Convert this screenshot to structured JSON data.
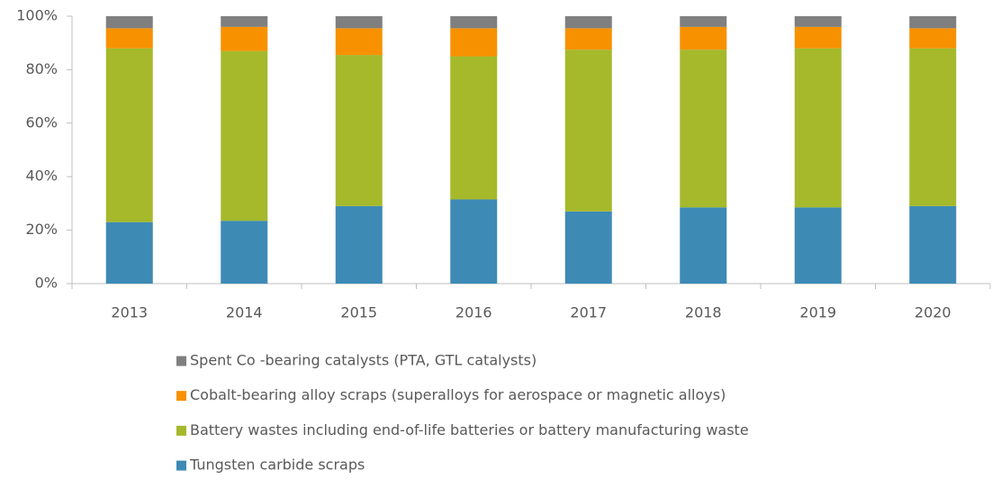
{
  "chart_data": {
    "type": "stacked_bar",
    "categories": [
      "2013",
      "2014",
      "2015",
      "2016",
      "2017",
      "2018",
      "2019",
      "2020"
    ],
    "series": [
      {
        "name": "Tungsten carbide scraps",
        "color": "#3d8ab5",
        "values": [
          23,
          23.5,
          29,
          31.5,
          27,
          28.5,
          28.5,
          29
        ]
      },
      {
        "name": "Battery wastes including end-of-life batteries or battery manufacturing waste",
        "color": "#a5b92b",
        "values": [
          65,
          63.5,
          56.5,
          53.5,
          60.5,
          59,
          59.5,
          59
        ]
      },
      {
        "name": "Cobalt-bearing alloy scraps (superalloys for aerospace or magnetic alloys)",
        "color": "#f79100",
        "values": [
          7.5,
          9,
          10,
          10.5,
          8,
          8.5,
          8,
          7.5
        ]
      },
      {
        "name": "Spent Co -bearing catalysts (PTA, GTL catalysts)",
        "color": "#7f7f7f",
        "values": [
          4.5,
          4,
          4.5,
          4.5,
          4.5,
          4,
          4,
          4.5
        ]
      }
    ],
    "ylim": [
      0,
      100
    ],
    "yticks": [
      {
        "value": 0,
        "label": "0%"
      },
      {
        "value": 20,
        "label": "20%"
      },
      {
        "value": 40,
        "label": "40%"
      },
      {
        "value": 60,
        "label": "60%"
      },
      {
        "value": 80,
        "label": "80%"
      },
      {
        "value": 100,
        "label": "100%"
      }
    ],
    "legend": "bottom"
  }
}
